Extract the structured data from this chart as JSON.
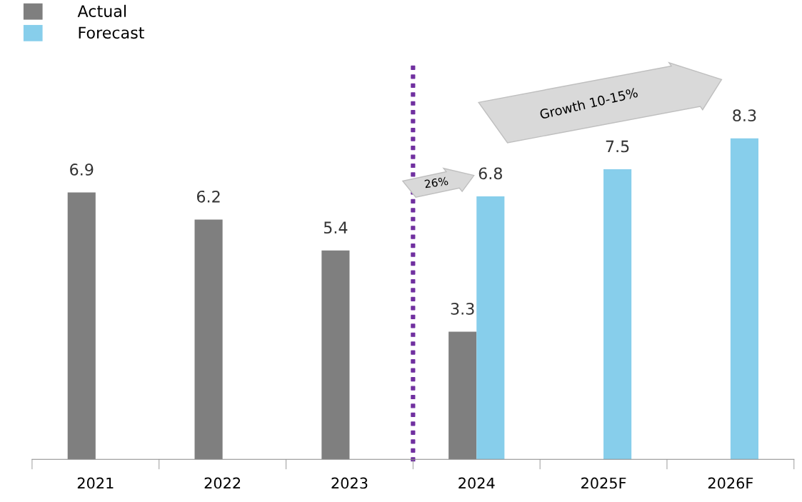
{
  "chart_data": {
    "type": "bar",
    "categories": [
      "2021",
      "2022",
      "2023",
      "2024",
      "2025F",
      "2026F"
    ],
    "series": [
      {
        "name": "Actual",
        "color": "#7f7f7f",
        "values": [
          6.9,
          6.2,
          5.4,
          3.3,
          null,
          null
        ]
      },
      {
        "name": "Forecast",
        "color": "#87ceeb",
        "values": [
          null,
          null,
          null,
          6.8,
          7.5,
          8.3
        ]
      }
    ],
    "data_labels": true,
    "legend": "top left",
    "grid": false,
    "annotations": [
      "26%",
      "Growth 10-15%"
    ]
  }
}
